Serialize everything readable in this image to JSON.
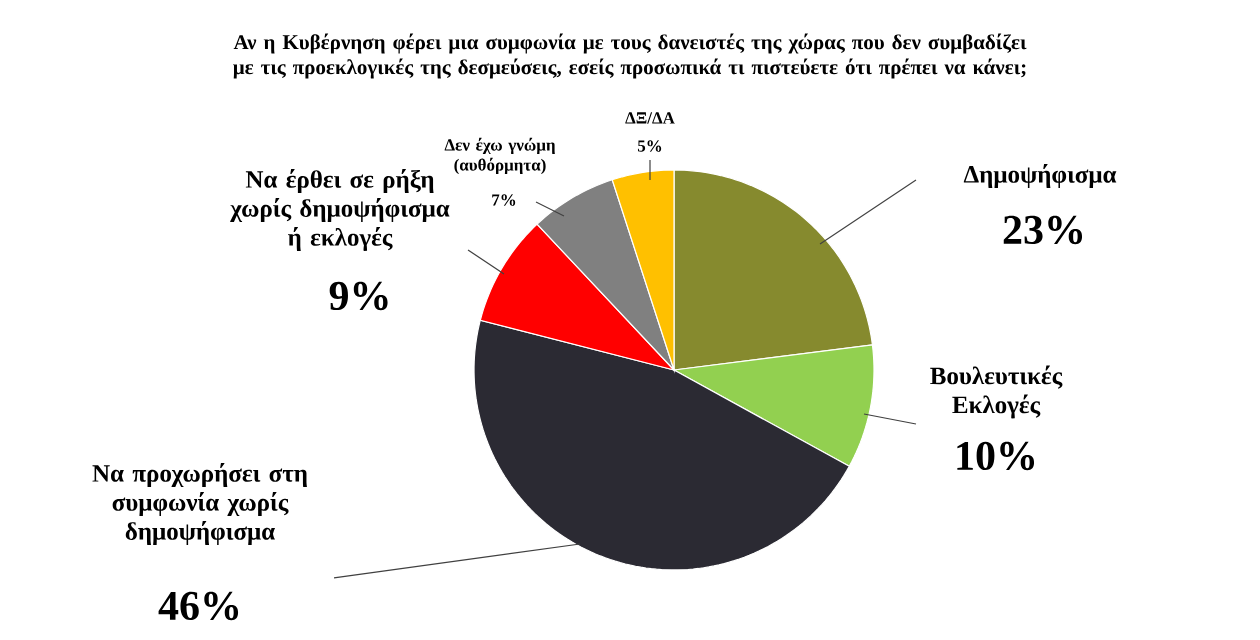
{
  "chart_data": {
    "type": "pie",
    "title": "Αν η Κυβέρνηση φέρει μια συμφωνία με τους δανειστές της χώρας που δεν συμβαδίζει με τις προεκλογικές της δεσμεύσεις, εσείς προσωπικά τι πιστεύετε ότι πρέπει να κάνει;",
    "categories": [
      "Δημοψήφισμα",
      "Βουλευτικές Εκλογές",
      "Να προχωρήσει στη συμφωνία χωρίς δημοψήφισμα",
      "Να έρθει σε ρήξη χωρίς δημοψήφισμα ή εκλογές",
      "Δεν έχω γνώμη (αυθόρμητα)",
      "ΔΞ/ΔΑ"
    ],
    "values": [
      23,
      10,
      46,
      9,
      7,
      5
    ],
    "value_labels": [
      "23%",
      "10%",
      "46%",
      "9%",
      "7%",
      "5%"
    ],
    "colors": [
      "#868a2e",
      "#92d050",
      "#2b2a33",
      "#ff0000",
      "#808080",
      "#ffc000"
    ],
    "legend": false
  }
}
